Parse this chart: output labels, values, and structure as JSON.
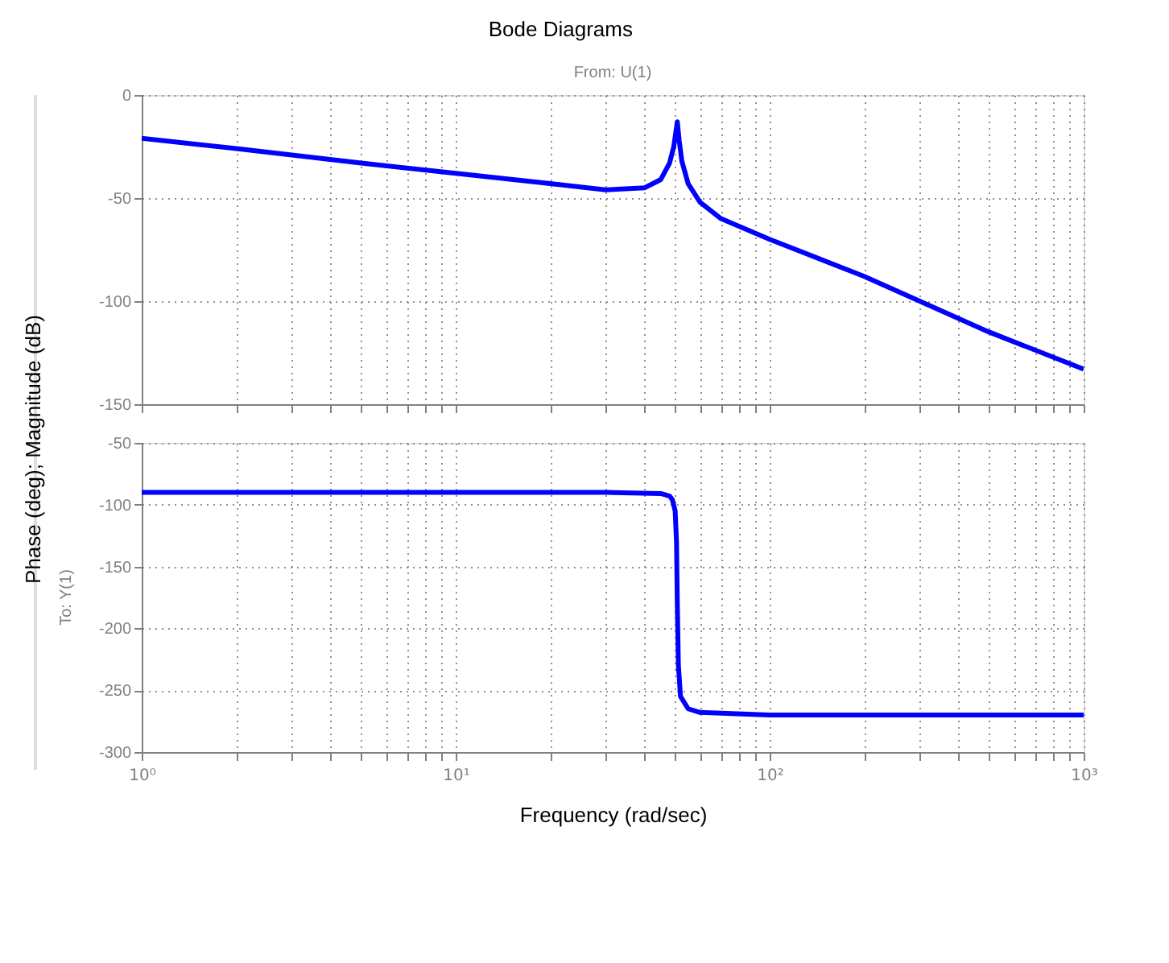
{
  "chart_data": [
    {
      "type": "line",
      "title": "Bode Diagrams",
      "subtitle": "From: U(1)",
      "ylabel": "Phase (deg); Magnitude (dB)",
      "x": [
        1,
        2,
        5,
        10,
        20,
        30,
        40,
        45,
        48,
        49.5,
        50.8,
        51.5,
        52.5,
        55,
        60,
        70,
        100,
        200,
        500,
        1000
      ],
      "series": [
        {
          "color": "#0000ff",
          "values": [
            -21,
            -26,
            -33,
            -38,
            -43,
            -46,
            -45,
            -41,
            -33,
            -25,
            -13,
            -22,
            -32,
            -43,
            -52,
            -60,
            -70,
            -88,
            -115,
            -133
          ]
        }
      ],
      "xlim": [
        1,
        1000
      ],
      "xticks": [
        {
          "value": 1,
          "label": null
        },
        {
          "value": 2,
          "label": null
        },
        {
          "value": 3,
          "label": null
        },
        {
          "value": 4,
          "label": null
        },
        {
          "value": 5,
          "label": null
        },
        {
          "value": 6,
          "label": null
        },
        {
          "value": 7,
          "label": null
        },
        {
          "value": 8,
          "label": null
        },
        {
          "value": 9,
          "label": null
        },
        {
          "value": 10,
          "label": null
        },
        {
          "value": 20,
          "label": null
        },
        {
          "value": 30,
          "label": null
        },
        {
          "value": 40,
          "label": null
        },
        {
          "value": 50,
          "label": null
        },
        {
          "value": 60,
          "label": null
        },
        {
          "value": 70,
          "label": null
        },
        {
          "value": 80,
          "label": null
        },
        {
          "value": 90,
          "label": null
        },
        {
          "value": 100,
          "label": null
        },
        {
          "value": 200,
          "label": null
        },
        {
          "value": 300,
          "label": null
        },
        {
          "value": 400,
          "label": null
        },
        {
          "value": 500,
          "label": null
        },
        {
          "value": 600,
          "label": null
        },
        {
          "value": 700,
          "label": null
        },
        {
          "value": 800,
          "label": null
        },
        {
          "value": 900,
          "label": null
        },
        {
          "value": 1000,
          "label": null
        }
      ],
      "ylim": [
        -150,
        0
      ],
      "yticks": [
        -150,
        -100,
        -50,
        0
      ],
      "log": "x",
      "grid": true,
      "tick_labels": "y"
    },
    {
      "type": "line",
      "xlabel": "Frequency (rad/sec)",
      "annotations": [
        "To: Y(1)"
      ],
      "x": [
        1,
        10,
        30,
        45,
        48,
        49,
        50,
        50.5,
        50.8,
        51.2,
        52,
        55,
        60,
        100,
        1000
      ],
      "series": [
        {
          "color": "#0000ff",
          "values": [
            -90,
            -90,
            -90,
            -91,
            -93,
            -96,
            -105,
            -130,
            -180,
            -230,
            -255,
            -265,
            -268,
            -270,
            -270
          ]
        }
      ],
      "xlim": [
        1,
        1000
      ],
      "xticks": [
        {
          "value": 1,
          "label": "10⁰"
        },
        {
          "value": 2,
          "label": null
        },
        {
          "value": 3,
          "label": null
        },
        {
          "value": 4,
          "label": null
        },
        {
          "value": 5,
          "label": null
        },
        {
          "value": 6,
          "label": null
        },
        {
          "value": 7,
          "label": null
        },
        {
          "value": 8,
          "label": null
        },
        {
          "value": 9,
          "label": null
        },
        {
          "value": 10,
          "label": "10¹"
        },
        {
          "value": 20,
          "label": null
        },
        {
          "value": 30,
          "label": null
        },
        {
          "value": 40,
          "label": null
        },
        {
          "value": 50,
          "label": null
        },
        {
          "value": 60,
          "label": null
        },
        {
          "value": 70,
          "label": null
        },
        {
          "value": 80,
          "label": null
        },
        {
          "value": 90,
          "label": null
        },
        {
          "value": 100,
          "label": "10²"
        },
        {
          "value": 200,
          "label": null
        },
        {
          "value": 300,
          "label": null
        },
        {
          "value": 400,
          "label": null
        },
        {
          "value": 500,
          "label": null
        },
        {
          "value": 600,
          "label": null
        },
        {
          "value": 700,
          "label": null
        },
        {
          "value": 800,
          "label": null
        },
        {
          "value": 900,
          "label": null
        },
        {
          "value": 1000,
          "label": "10³"
        }
      ],
      "ylim": [
        -300,
        -50
      ],
      "yticks": [
        -300,
        -250,
        -200,
        -150,
        -100,
        -50
      ],
      "log": "x",
      "grid": true
    }
  ]
}
